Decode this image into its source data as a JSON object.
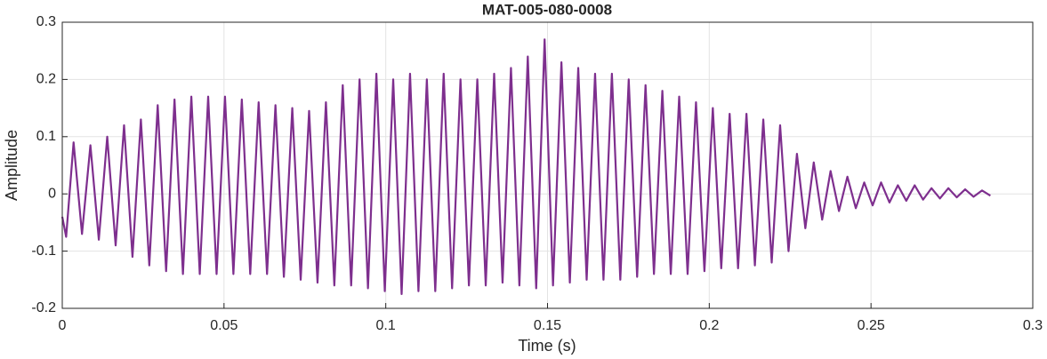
{
  "chart_data": {
    "type": "line",
    "title": "MAT-005-080-0008",
    "xlabel": "Time (s)",
    "ylabel": "Amplitude",
    "xlim": [
      0,
      0.3
    ],
    "xticks": [
      0,
      0.05,
      0.1,
      0.15,
      0.2,
      0.25,
      0.3
    ],
    "ylim": [
      -0.2,
      0.3
    ],
    "yticks": [
      -0.2,
      -0.1,
      0,
      0.1,
      0.2,
      0.3
    ],
    "grid": true,
    "x": [
      0,
      0.0012,
      0.0035,
      0.0061,
      0.0087,
      0.0113,
      0.0139,
      0.0165,
      0.0191,
      0.0217,
      0.0243,
      0.0269,
      0.0295,
      0.0321,
      0.0347,
      0.0373,
      0.0399,
      0.0425,
      0.0451,
      0.0477,
      0.0503,
      0.0529,
      0.0555,
      0.0581,
      0.0607,
      0.0633,
      0.0659,
      0.0685,
      0.0711,
      0.0737,
      0.0763,
      0.0789,
      0.0815,
      0.0841,
      0.0867,
      0.0893,
      0.0919,
      0.0945,
      0.0971,
      0.0997,
      0.1023,
      0.1049,
      0.1075,
      0.1101,
      0.1127,
      0.1153,
      0.1179,
      0.1205,
      0.1231,
      0.1257,
      0.1283,
      0.1309,
      0.1335,
      0.1361,
      0.1387,
      0.1413,
      0.1439,
      0.1465,
      0.1491,
      0.1517,
      0.1543,
      0.1569,
      0.1595,
      0.1621,
      0.1647,
      0.1673,
      0.1699,
      0.1725,
      0.1751,
      0.1777,
      0.1803,
      0.1829,
      0.1855,
      0.1881,
      0.1907,
      0.1933,
      0.1959,
      0.1985,
      0.2011,
      0.2037,
      0.2063,
      0.2089,
      0.2115,
      0.2141,
      0.2167,
      0.2193,
      0.2219,
      0.2245,
      0.2271,
      0.2297,
      0.2323,
      0.2349,
      0.2375,
      0.2401,
      0.2427,
      0.2453,
      0.2479,
      0.2505,
      0.2531,
      0.2557,
      0.2583,
      0.2609,
      0.2635,
      0.2661,
      0.2687,
      0.2713,
      0.2739,
      0.2765,
      0.2791,
      0.2817,
      0.2843,
      0.2869
    ],
    "series": [
      {
        "color": "#7e2f8e",
        "values": [
          -0.04,
          -0.075,
          0.09,
          -0.07,
          0.085,
          -0.08,
          0.1,
          -0.09,
          0.12,
          -0.11,
          0.13,
          -0.125,
          0.155,
          -0.135,
          0.165,
          -0.14,
          0.17,
          -0.14,
          0.17,
          -0.14,
          0.17,
          -0.14,
          0.165,
          -0.14,
          0.16,
          -0.14,
          0.155,
          -0.145,
          0.15,
          -0.15,
          0.145,
          -0.155,
          0.16,
          -0.16,
          0.19,
          -0.16,
          0.2,
          -0.165,
          0.21,
          -0.17,
          0.2,
          -0.175,
          0.21,
          -0.17,
          0.2,
          -0.17,
          0.21,
          -0.165,
          0.2,
          -0.16,
          0.2,
          -0.16,
          0.21,
          -0.155,
          0.22,
          -0.16,
          0.24,
          -0.165,
          0.27,
          -0.16,
          0.23,
          -0.155,
          0.22,
          -0.15,
          0.21,
          -0.15,
          0.21,
          -0.15,
          0.2,
          -0.145,
          0.19,
          -0.14,
          0.18,
          -0.14,
          0.17,
          -0.14,
          0.16,
          -0.135,
          0.15,
          -0.13,
          0.14,
          -0.13,
          0.14,
          -0.125,
          0.13,
          -0.12,
          0.12,
          -0.1,
          0.07,
          -0.06,
          0.055,
          -0.045,
          0.04,
          -0.03,
          0.03,
          -0.025,
          0.02,
          -0.02,
          0.02,
          -0.015,
          0.015,
          -0.012,
          0.015,
          -0.01,
          0.01,
          -0.008,
          0.01,
          -0.006,
          0.008,
          -0.005,
          0.006,
          -0.003
        ]
      }
    ]
  }
}
